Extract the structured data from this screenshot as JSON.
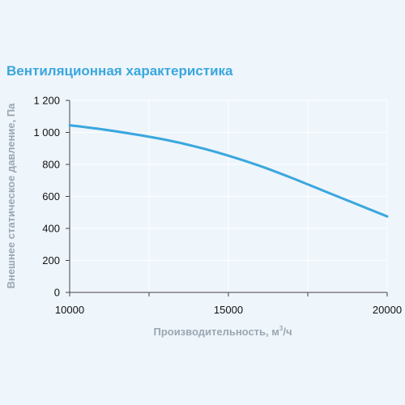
{
  "chart_data": {
    "type": "line",
    "title": "Вентиляционная характеристика",
    "xlabel": "Производительность, м",
    "xlabel_sup": "3",
    "xlabel_suffix": "/ч",
    "ylabel": "Внешнее статическое давление, Па",
    "xlim": [
      10000,
      20000
    ],
    "ylim": [
      0,
      1200
    ],
    "x_ticks": [
      10000,
      15000,
      20000
    ],
    "x_tick_labels": [
      "10000",
      "15000",
      "20000"
    ],
    "x_minor_ticks": [
      12500,
      17500
    ],
    "y_ticks": [
      0,
      200,
      400,
      600,
      800,
      1000,
      1200
    ],
    "y_tick_labels": [
      "0",
      "200",
      "400",
      "600",
      "800",
      "1 000",
      "1 200"
    ],
    "grid": true,
    "series": [
      {
        "color": "#3aa7de",
        "x": [
          10000,
          11000,
          12000,
          13000,
          14000,
          15000,
          16000,
          17000,
          18000,
          19000,
          20000
        ],
        "y": [
          1045,
          1020,
          990,
          955,
          910,
          855,
          790,
          715,
          635,
          555,
          475
        ]
      }
    ]
  },
  "colors": {
    "background": "#eef5fb",
    "line": "#3aa7de",
    "grid": "#ffffff",
    "axis": "#444444"
  }
}
